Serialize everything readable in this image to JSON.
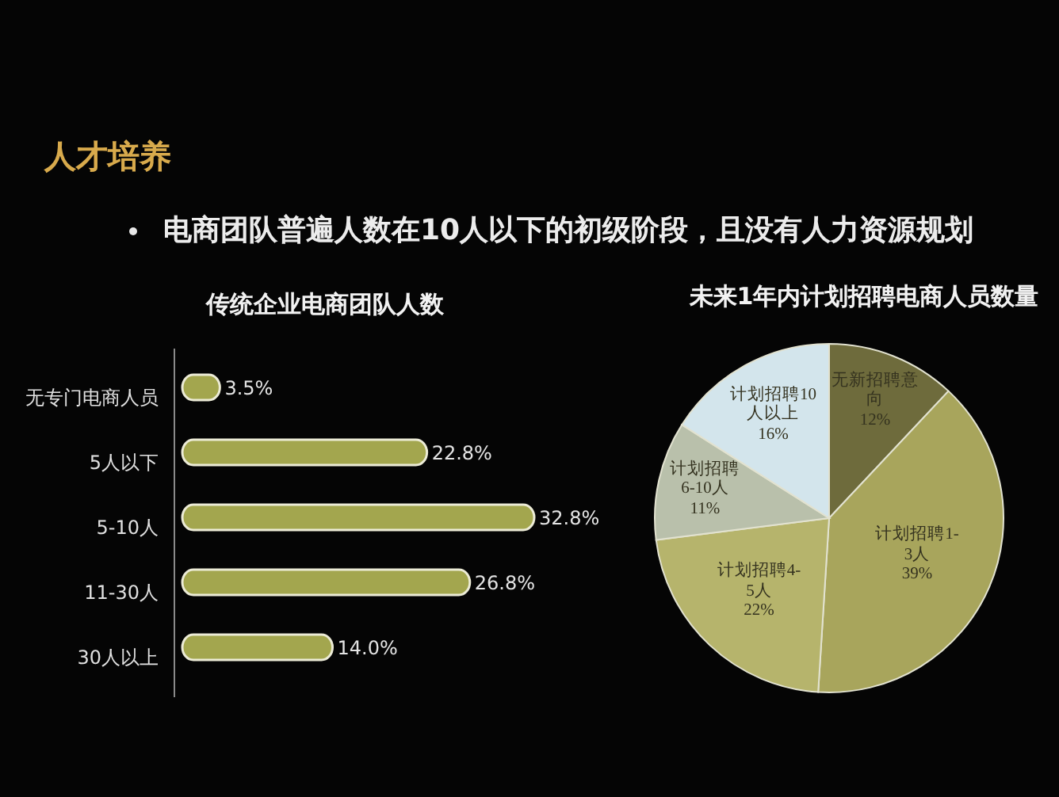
{
  "chart_data": [
    {
      "type": "other",
      "title": "人才培养",
      "annotations": [
        "电商团队普遍人数在10人以下的初级阶段，且没有人力资源规划"
      ]
    },
    {
      "type": "bar",
      "orientation": "horizontal",
      "title": "传统企业电商团队人数",
      "categories": [
        "无专门电商人员",
        "5人以下",
        "5-10人",
        "11-30人",
        "30人以上"
      ],
      "values": [
        3.5,
        22.8,
        32.8,
        26.8,
        14.0
      ],
      "value_labels": [
        "3.5%",
        "22.8%",
        "32.8%",
        "26.8%",
        "14.0%"
      ],
      "color": "#a3a64e"
    },
    {
      "type": "pie",
      "title": "未来1年内计划招聘电商人员数量",
      "categories": [
        "无新招聘意向",
        "计划招聘1-3人",
        "计划招聘4-5人",
        "计划招聘6-10人",
        "计划招聘10人以上"
      ],
      "values": [
        12,
        39,
        22,
        11,
        16
      ],
      "value_labels": [
        "12%",
        "39%",
        "22%",
        "11%",
        "16%"
      ],
      "colors": [
        "#6e6b3c",
        "#a8a55c",
        "#b6b46c",
        "#b9c0ab",
        "#d3e5ec"
      ]
    }
  ]
}
